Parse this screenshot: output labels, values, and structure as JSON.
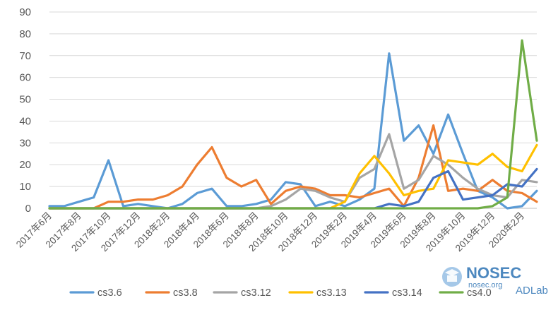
{
  "chart_data": {
    "type": "line",
    "title": "",
    "xlabel": "",
    "ylabel": "",
    "ylim": [
      0,
      90
    ],
    "yticks": [
      "0",
      "10",
      "20",
      "30",
      "40",
      "50",
      "60",
      "70",
      "80",
      "90"
    ],
    "grid": "horizontal",
    "legend_position": "bottom",
    "x": [
      "2017年6月",
      "2017年7月",
      "2017年8月",
      "2017年9月",
      "2017年10月",
      "2017年11月",
      "2017年12月",
      "2018年1月",
      "2018年2月",
      "2018年3月",
      "2018年4月",
      "2018年5月",
      "2018年6月",
      "2018年7月",
      "2018年8月",
      "2018年9月",
      "2018年10月",
      "2018年11月",
      "2018年12月",
      "2019年1月",
      "2019年2月",
      "2019年3月",
      "2019年4月",
      "2019年5月",
      "2019年6月",
      "2019年7月",
      "2019年8月",
      "2019年9月",
      "2019年10月",
      "2019年11月",
      "2019年12月",
      "2020年1月",
      "2020年2月",
      "2020年3月"
    ],
    "x_tick_labels": [
      "2017年6月",
      "2017年8月",
      "2017年10月",
      "2017年12月",
      "2018年2月",
      "2018年4月",
      "2018年6月",
      "2018年8月",
      "2018年10月",
      "2018年12月",
      "2019年2月",
      "2019年4月",
      "2019年6月",
      "2019年8月",
      "2019年10月",
      "2019年12月",
      "2020年2月"
    ],
    "series": [
      {
        "name": "cs3.6",
        "color": "#5b9bd5",
        "values": [
          1,
          1,
          3,
          5,
          22,
          1,
          2,
          1,
          0,
          2,
          7,
          9,
          1,
          1,
          2,
          4,
          12,
          11,
          1,
          3,
          1,
          4,
          9,
          71,
          31,
          38,
          25,
          43,
          25,
          8,
          5,
          0,
          1,
          8
        ]
      },
      {
        "name": "cs3.8",
        "color": "#ed7d31",
        "values": [
          0,
          0,
          0,
          0,
          3,
          3,
          4,
          4,
          6,
          10,
          20,
          28,
          14,
          10,
          13,
          2,
          8,
          10,
          9,
          6,
          6,
          5,
          7,
          9,
          1,
          14,
          38,
          8,
          9,
          8,
          13,
          8,
          7,
          3
        ]
      },
      {
        "name": "cs3.12",
        "color": "#a5a5a5",
        "values": [
          0,
          0,
          0,
          0,
          0,
          0,
          0,
          0,
          0,
          0,
          0,
          0,
          0,
          0,
          0,
          1,
          4,
          9,
          8,
          5,
          3,
          14,
          18,
          34,
          9,
          13,
          24,
          20,
          14,
          9,
          6,
          5,
          13,
          12
        ]
      },
      {
        "name": "cs3.13",
        "color": "#ffc000",
        "values": [
          0,
          0,
          0,
          0,
          0,
          0,
          0,
          0,
          0,
          0,
          0,
          0,
          0,
          0,
          0,
          0,
          0,
          0,
          0,
          0,
          3,
          16,
          24,
          16,
          6,
          8,
          9,
          22,
          21,
          20,
          25,
          19,
          17,
          29
        ]
      },
      {
        "name": "cs3.14",
        "color": "#4472c4",
        "values": [
          0,
          0,
          0,
          0,
          0,
          0,
          0,
          0,
          0,
          0,
          0,
          0,
          0,
          0,
          0,
          0,
          0,
          0,
          0,
          0,
          0,
          0,
          0,
          2,
          1,
          3,
          14,
          17,
          4,
          5,
          6,
          11,
          10,
          18
        ]
      },
      {
        "name": "cs4.0",
        "color": "#70ad47",
        "values": [
          0,
          0,
          0,
          0,
          0,
          0,
          0,
          0,
          0,
          0,
          0,
          0,
          0,
          0,
          0,
          0,
          0,
          0,
          0,
          0,
          0,
          0,
          0,
          0,
          0,
          0,
          0,
          0,
          0,
          0,
          1,
          5,
          77,
          31
        ]
      }
    ]
  },
  "watermark": {
    "brand": "NOSEC",
    "domain": "nosec.org",
    "lab": "ADLab"
  }
}
